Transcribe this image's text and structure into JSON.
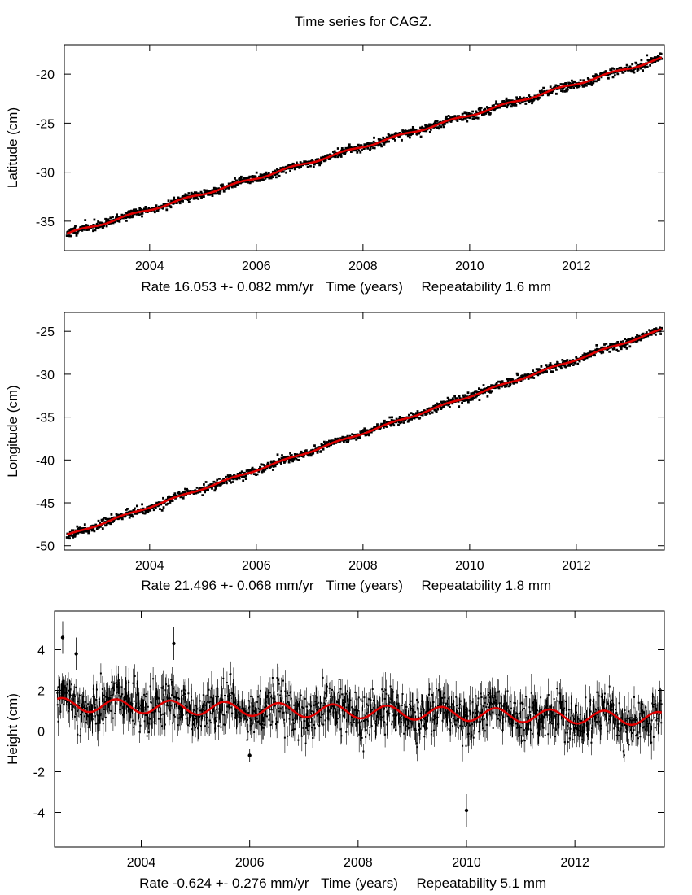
{
  "page_title": "Time series for CAGZ.",
  "colors": {
    "model": "#e00000",
    "data": "#000000",
    "frame": "#000000",
    "background": "#ffffff"
  },
  "chart_data": [
    {
      "type": "scatter",
      "name": "latitude",
      "ylabel": "Latitude (cm)",
      "xlabel": "Time (years)",
      "rate_text": "Rate 16.053 +- 0.082 mm/yr",
      "repeat_text": "Repeatability 1.6 mm",
      "xlim": [
        2002.4,
        2013.65
      ],
      "ylim": [
        -38.0,
        -17.0
      ],
      "xticks": [
        2004,
        2006,
        2008,
        2010,
        2012
      ],
      "yticks": [
        -35,
        -30,
        -25,
        -20
      ],
      "model": {
        "start": -36.3,
        "rate_cm_per_yr": 1.6053,
        "annual_amp": 0.12,
        "phase": 0.3,
        "x0": 2002.45,
        "x1": 2013.6
      },
      "noise_cm": 0.22,
      "error_bars": false,
      "seed": 11
    },
    {
      "type": "scatter",
      "name": "longitude",
      "ylabel": "Longitude (cm)",
      "xlabel": "Time (years)",
      "rate_text": "Rate 21.496 +- 0.068 mm/yr",
      "repeat_text": "Repeatability 1.8 mm",
      "xlim": [
        2002.4,
        2013.65
      ],
      "ylim": [
        -50.5,
        -22.8
      ],
      "xticks": [
        2004,
        2006,
        2008,
        2010,
        2012
      ],
      "yticks": [
        -50,
        -45,
        -40,
        -35,
        -30,
        -25
      ],
      "model": {
        "start": -48.8,
        "rate_cm_per_yr": 2.1496,
        "annual_amp": 0.1,
        "phase": 1.2,
        "x0": 2002.45,
        "x1": 2013.6
      },
      "noise_cm": 0.25,
      "error_bars": false,
      "seed": 23
    },
    {
      "type": "scatter",
      "name": "height",
      "ylabel": "Height (cm)",
      "xlabel": "Time (years)",
      "rate_text": "Rate -0.624 +- 0.276 mm/yr",
      "repeat_text": "Repeatability 5.1 mm",
      "xlim": [
        2002.4,
        2013.65
      ],
      "ylim": [
        -5.7,
        5.9
      ],
      "xticks": [
        2004,
        2006,
        2008,
        2010,
        2012
      ],
      "yticks": [
        -4,
        -2,
        0,
        2,
        4
      ],
      "model": {
        "start": 1.3,
        "rate_cm_per_yr": -0.0624,
        "annual_amp": 0.33,
        "phase": 1.0,
        "x0": 2002.45,
        "x1": 2013.6
      },
      "noise_cm": 0.55,
      "error_bars": true,
      "outliers": [
        {
          "x": 2002.55,
          "y": 4.6
        },
        {
          "x": 2002.8,
          "y": 3.8
        },
        {
          "x": 2004.6,
          "y": 4.3
        },
        {
          "x": 2006.0,
          "y": -1.2
        },
        {
          "x": 2010.0,
          "y": -3.9
        }
      ],
      "seed": 37
    }
  ]
}
